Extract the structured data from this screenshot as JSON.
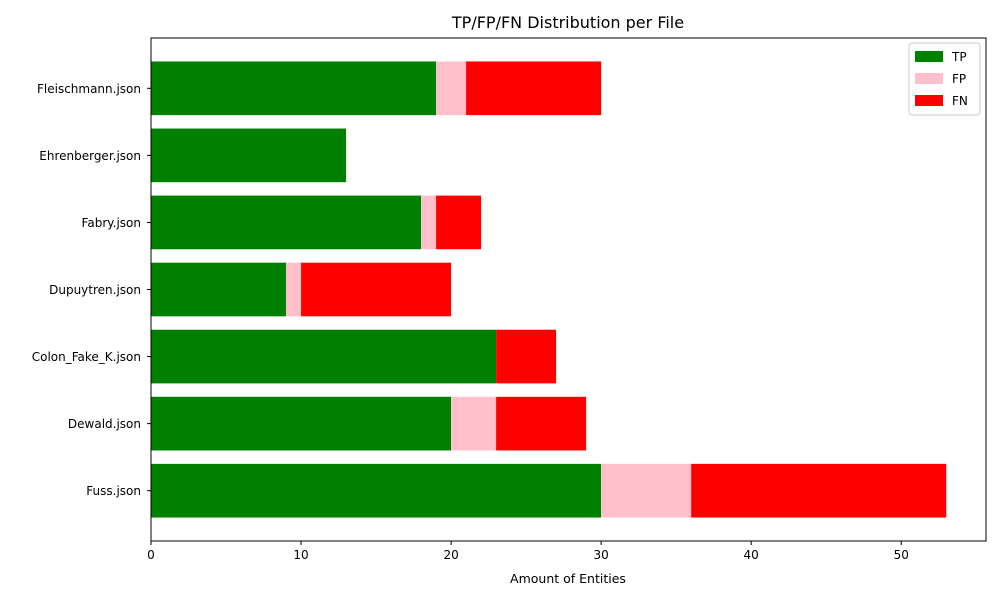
{
  "chart_data": {
    "type": "bar",
    "orientation": "horizontal",
    "stacked": true,
    "title": "TP/FP/FN Distribution per File",
    "xlabel": "Amount of Entities",
    "ylabel": "",
    "xlim": [
      0,
      55.65
    ],
    "xticks": [
      0,
      10,
      20,
      30,
      40,
      50
    ],
    "grid": false,
    "legend_position": "top-right",
    "categories": [
      "Fuss.json",
      "Dewald.json",
      "Colon_Fake_K.json",
      "Dupuytren.json",
      "Fabry.json",
      "Ehrenberger.json",
      "Fleischmann.json"
    ],
    "series": [
      {
        "name": "TP",
        "color": "#008000",
        "values": [
          30,
          20,
          23,
          9,
          18,
          13,
          19
        ]
      },
      {
        "name": "FP",
        "color": "#ffc0cb",
        "values": [
          6,
          3,
          0,
          1,
          1,
          0,
          2
        ]
      },
      {
        "name": "FN",
        "color": "#ff0000",
        "values": [
          17,
          6,
          4,
          10,
          3,
          0,
          9
        ]
      }
    ]
  }
}
